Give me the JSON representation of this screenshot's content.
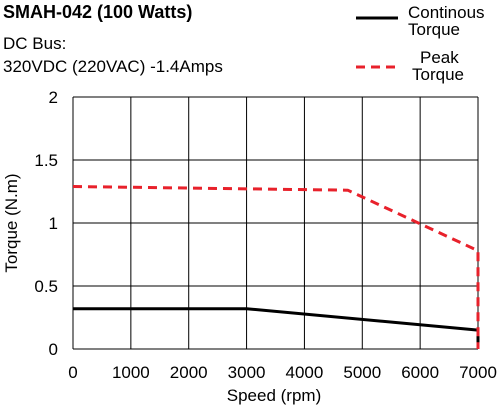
{
  "header": {
    "title": "SMAH-042 (100 Watts)",
    "line1": "DC Bus:",
    "line2": "320VDC (220VAC)  -1.4Amps"
  },
  "legend": {
    "continuous_line1": "Continous",
    "continuous_line2": "Torque",
    "peak_line1": "Peak",
    "peak_line2": "Torque"
  },
  "colors": {
    "continuous": "#000000",
    "peak": "#e8212b",
    "grid": "#000000"
  },
  "chart_data": {
    "type": "line",
    "title": "SMAH-042 (100 Watts)",
    "xlabel": "Speed (rpm)",
    "ylabel": "Torque (N.m)",
    "xlim": [
      0,
      7000
    ],
    "ylim": [
      0,
      2
    ],
    "xticks": [
      0,
      1000,
      2000,
      3000,
      4000,
      5000,
      6000,
      7000
    ],
    "yticks": [
      0,
      0.5,
      1,
      1.5,
      2
    ],
    "xtick_labels": [
      "0",
      "1000",
      "2000",
      "3000",
      "4000",
      "5000",
      "6000",
      "7000"
    ],
    "ytick_labels": [
      "0",
      "0.5",
      "1",
      "1.5",
      "2"
    ],
    "grid": true,
    "legend_position": "top-right",
    "series": [
      {
        "name": "Continous Torque",
        "style": "solid",
        "x": [
          0,
          3000,
          7000,
          7000
        ],
        "y": [
          0.32,
          0.32,
          0.15,
          0
        ]
      },
      {
        "name": "Peak Torque",
        "style": "dashed",
        "x": [
          0,
          4750,
          7000,
          7000
        ],
        "y": [
          1.29,
          1.26,
          0.78,
          0
        ]
      }
    ]
  }
}
